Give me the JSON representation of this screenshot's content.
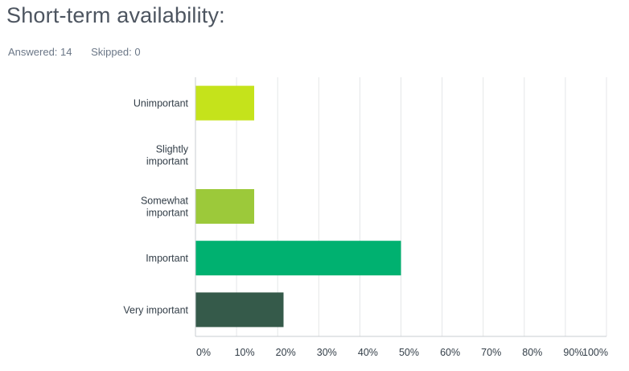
{
  "header": {
    "title": "Short-term availability:",
    "answered": "Answered: 14",
    "skipped": "Skipped: 0"
  },
  "chart_data": {
    "type": "bar",
    "orientation": "horizontal",
    "categories": [
      "Unimportant",
      "Slightly important",
      "Somewhat important",
      "Important",
      "Very important"
    ],
    "category_lines": [
      [
        "Unimportant"
      ],
      [
        "Slightly",
        "important"
      ],
      [
        "Somewhat",
        "important"
      ],
      [
        "Important"
      ],
      [
        "Very important"
      ]
    ],
    "values": [
      14.29,
      0,
      14.29,
      50,
      21.43
    ],
    "colors": [
      "#c5e31b",
      "#8ec234",
      "#9cc93a",
      "#00b170",
      "#355a4a"
    ],
    "xlim": [
      0,
      100
    ],
    "x_ticks": [
      0,
      10,
      20,
      30,
      40,
      50,
      60,
      70,
      80,
      90,
      100
    ],
    "x_tick_labels": [
      "0%",
      "10%",
      "20%",
      "30%",
      "40%",
      "50%",
      "60%",
      "70%",
      "80%",
      "90%",
      "100%"
    ],
    "grid": true,
    "title": "",
    "xlabel": "",
    "ylabel": ""
  }
}
